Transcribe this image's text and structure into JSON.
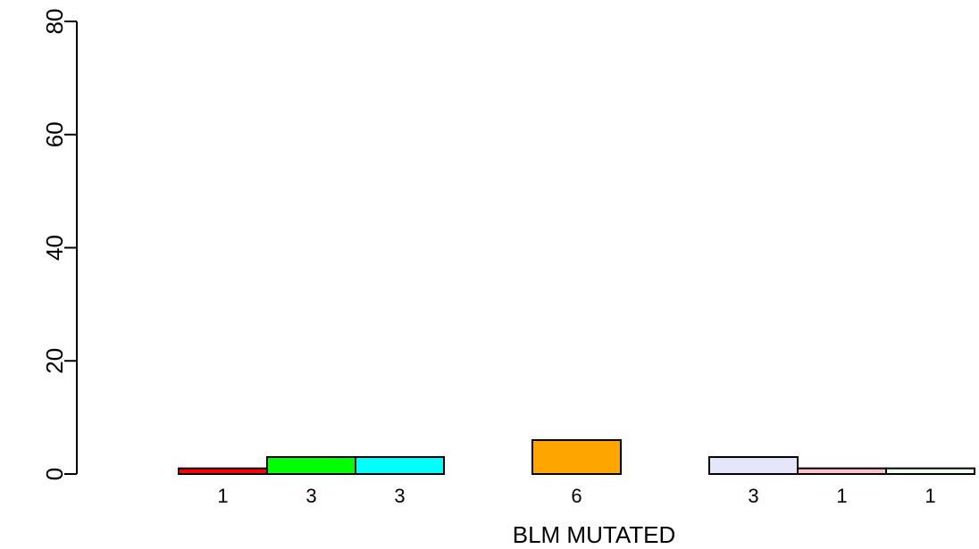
{
  "chart_data": {
    "type": "bar",
    "title": "",
    "xlabel": "BLM MUTATED",
    "ylabel": "",
    "ylim": [
      0,
      80
    ],
    "yticks": [
      0,
      20,
      40,
      60,
      80
    ],
    "grid": false,
    "legend": "none",
    "bars": [
      {
        "group": 1,
        "value": 1,
        "label": "1",
        "color": "#ff0000"
      },
      {
        "group": 1,
        "value": 3,
        "label": "3",
        "color": "#00ff00"
      },
      {
        "group": 1,
        "value": 3,
        "label": "3",
        "color": "#00ffff"
      },
      {
        "group": 2,
        "value": 6,
        "label": "6",
        "color": "#ffa500"
      },
      {
        "group": 3,
        "value": 3,
        "label": "3",
        "color": "#e6e6fa"
      },
      {
        "group": 3,
        "value": 1,
        "label": "1",
        "color": "#ffc0cb"
      },
      {
        "group": 3,
        "value": 1,
        "label": "1",
        "color": "#f0fff0"
      }
    ]
  }
}
